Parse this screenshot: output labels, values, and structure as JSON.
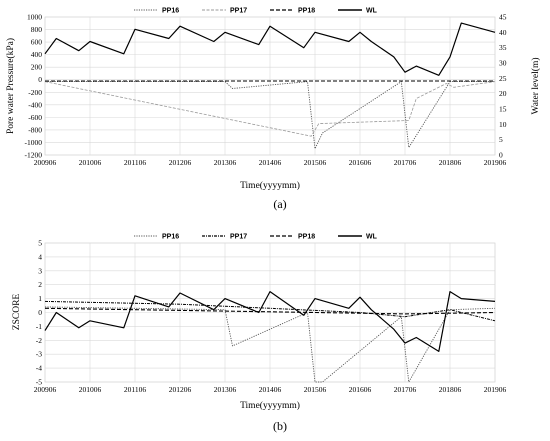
{
  "chart_data": [
    {
      "type": "line",
      "panel_label": "(a)",
      "xlabel": "Time(yyyymm)",
      "ylabel": "Pore water Pressure(kPa)",
      "y2label": "Water level(m)",
      "x_tick_labels": [
        "200906",
        "201006",
        "201106",
        "201206",
        "201306",
        "201406",
        "201506",
        "201606",
        "201706",
        "201806",
        "201906"
      ],
      "y_ticks": [
        1000,
        800,
        600,
        400,
        200,
        0,
        -200,
        -400,
        -600,
        -800,
        -1000,
        -1200
      ],
      "y2_ticks": [
        45,
        40,
        35,
        30,
        25,
        20,
        15,
        10,
        5,
        0
      ],
      "ylim": [
        -1200,
        1000
      ],
      "y2lim": [
        0,
        45
      ],
      "grid": true,
      "legend_position": "top",
      "series": [
        {
          "name": "PP16",
          "axis": "left",
          "style": "dotted",
          "x": [
            "2009-06",
            "2013-06",
            "2013-08",
            "2015-04",
            "2015-06",
            "2015-08",
            "2017-05",
            "2017-07",
            "2018-06",
            "2019-06"
          ],
          "values": [
            -30,
            -30,
            -140,
            -30,
            -1100,
            -850,
            -30,
            -1080,
            -30,
            -30
          ]
        },
        {
          "name": "PP17",
          "axis": "left",
          "style": "dashed-light",
          "x": [
            "2009-06",
            "2015-05",
            "2015-07",
            "2017-07",
            "2017-09",
            "2018-05",
            "2018-07",
            "2019-06"
          ],
          "values": [
            -30,
            -900,
            -700,
            -650,
            -300,
            -60,
            -120,
            -30
          ]
        },
        {
          "name": "PP18",
          "axis": "left",
          "style": "dashed",
          "x": [
            "2009-06",
            "2019-06"
          ],
          "values": [
            -20,
            -20
          ]
        },
        {
          "name": "WL",
          "axis": "right",
          "style": "solid",
          "x": [
            "2009-06",
            "2009-09",
            "2010-03",
            "2010-06",
            "2011-03",
            "2011-06",
            "2012-03",
            "2012-06",
            "2013-03",
            "2013-06",
            "2014-03",
            "2014-06",
            "2015-03",
            "2015-06",
            "2016-03",
            "2016-06",
            "2016-09",
            "2017-03",
            "2017-06",
            "2017-09",
            "2018-03",
            "2018-06",
            "2018-09",
            "2019-06"
          ],
          "values": [
            33,
            38,
            34,
            37,
            33,
            41,
            38,
            42,
            37,
            40,
            36,
            42,
            35,
            40,
            37,
            40,
            37,
            32,
            27,
            29,
            26,
            32,
            43,
            40
          ]
        }
      ]
    },
    {
      "type": "line",
      "panel_label": "(b)",
      "xlabel": "Time(yyyymm)",
      "ylabel": "ZSCORE",
      "x_tick_labels": [
        "200906",
        "201006",
        "201106",
        "201206",
        "201306",
        "201406",
        "201506",
        "201606",
        "201706",
        "201806",
        "201906"
      ],
      "y_ticks": [
        5,
        4,
        3,
        2,
        1,
        0,
        -1,
        -2,
        -3,
        -4,
        -5
      ],
      "ylim": [
        -5,
        5
      ],
      "grid": true,
      "legend_position": "top",
      "series": [
        {
          "name": "PP16",
          "style": "dotted",
          "x": [
            "2009-06",
            "2011-06",
            "2013-06",
            "2013-08",
            "2015-04",
            "2015-06",
            "2015-08",
            "2017-05",
            "2017-07",
            "2018-06",
            "2019-06"
          ],
          "values": [
            0.4,
            0.3,
            0.2,
            -2.4,
            0.0,
            -5.0,
            -5.0,
            -0.3,
            -5.0,
            0.2,
            0.3
          ]
        },
        {
          "name": "PP17",
          "style": "dash-dot",
          "x": [
            "2009-06",
            "2012-06",
            "2014-06",
            "2016-06",
            "2017-06",
            "2018-06",
            "2019-06"
          ],
          "values": [
            0.8,
            0.6,
            0.3,
            0.0,
            -0.3,
            0.2,
            -0.6
          ]
        },
        {
          "name": "PP18",
          "style": "dashed",
          "x": [
            "2009-06",
            "2011-06",
            "2013-06",
            "2015-06",
            "2017-06",
            "2019-06"
          ],
          "values": [
            0.3,
            0.2,
            0.1,
            0.0,
            -0.1,
            0.0
          ]
        },
        {
          "name": "WL",
          "style": "solid",
          "x": [
            "2009-06",
            "2009-09",
            "2010-03",
            "2010-06",
            "2011-03",
            "2011-06",
            "2012-03",
            "2012-06",
            "2013-03",
            "2013-06",
            "2014-03",
            "2014-06",
            "2015-03",
            "2015-06",
            "2016-03",
            "2016-06",
            "2016-09",
            "2017-03",
            "2017-06",
            "2017-09",
            "2018-03",
            "2018-06",
            "2018-09",
            "2019-06"
          ],
          "values": [
            -1.3,
            0.0,
            -1.1,
            -0.6,
            -1.1,
            1.2,
            0.4,
            1.4,
            0.2,
            1.0,
            0.0,
            1.5,
            -0.2,
            1.0,
            0.3,
            1.1,
            0.2,
            -1.2,
            -2.2,
            -1.8,
            -2.8,
            1.5,
            1.0,
            0.8
          ]
        }
      ]
    }
  ]
}
